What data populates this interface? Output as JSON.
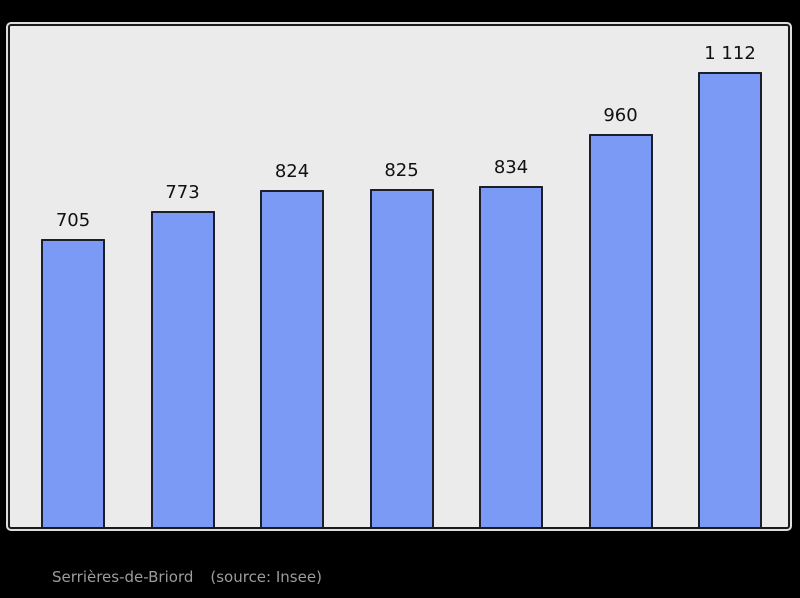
{
  "chart_data": {
    "type": "bar",
    "values": [
      705,
      773,
      824,
      825,
      834,
      960,
      1112
    ],
    "bar_labels": [
      "705",
      "773",
      "824",
      "825",
      "834",
      "960",
      "1 112"
    ],
    "title": "",
    "xlabel": "",
    "ylabel": "",
    "x_tick_labels": [],
    "ylim": [
      0,
      1225
    ],
    "grid": false,
    "legend": null,
    "caption": "Serrières-de-Briord",
    "source_note": "(source: Insee)"
  },
  "colors": {
    "outer_background": "#000000",
    "plot_background": "#ebebeb",
    "frame_border": "#1a1a1a",
    "frame_outline": "#dedede",
    "bar_fill": "#7b9af6",
    "bar_border": "#1c1f2a",
    "value_label": "#111111",
    "caption_text": "#9c9c9c"
  }
}
